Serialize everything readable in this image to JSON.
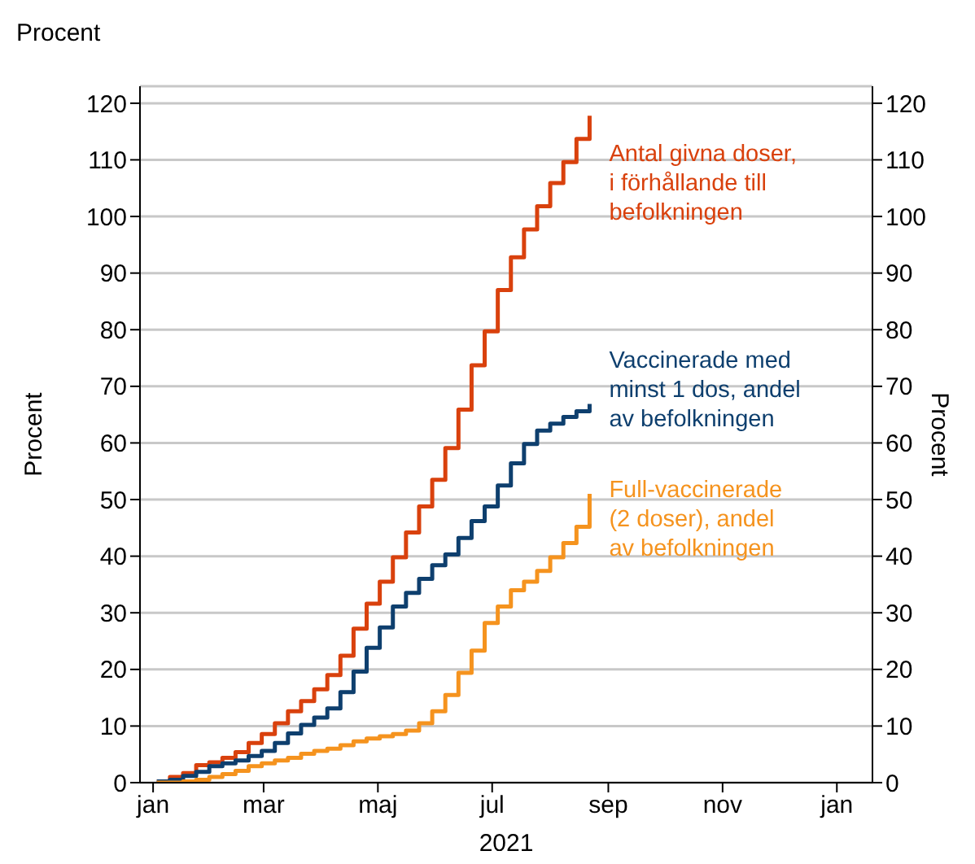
{
  "chart_data": {
    "type": "step",
    "title": "Procent",
    "xlabel": "2021",
    "ylabel": "Procent",
    "y2label": "Procent",
    "x": [
      "2021-01-03",
      "2021-01-10",
      "2021-01-17",
      "2021-01-24",
      "2021-01-31",
      "2021-02-07",
      "2021-02-14",
      "2021-02-21",
      "2021-02-28",
      "2021-03-07",
      "2021-03-14",
      "2021-03-21",
      "2021-03-28",
      "2021-04-04",
      "2021-04-11",
      "2021-04-18",
      "2021-04-25",
      "2021-05-02",
      "2021-05-09",
      "2021-05-16",
      "2021-05-23",
      "2021-05-30",
      "2021-06-06",
      "2021-06-13",
      "2021-06-20",
      "2021-06-27",
      "2021-07-04",
      "2021-07-11",
      "2021-07-18",
      "2021-07-25",
      "2021-08-01",
      "2021-08-08",
      "2021-08-15",
      "2021-08-22"
    ],
    "series": [
      {
        "name": "Antal givna doser, i förhållande till befolkningen",
        "color": "#d9410d",
        "values": [
          0.2,
          1,
          1.7,
          3.1,
          3.6,
          4.4,
          5.4,
          7,
          8.6,
          10.5,
          12.6,
          14.4,
          16.5,
          19,
          22.4,
          27.2,
          31.6,
          35.5,
          39.8,
          44.2,
          48.8,
          53.5,
          59.1,
          65.9,
          73.7,
          79.7,
          87,
          92.8,
          97.7,
          101.8,
          105.9,
          109.6,
          113.7,
          117.8
        ]
      },
      {
        "name": "Vaccinerade med minst 1 dos, andel av befolkningen",
        "color": "#0e3f6e",
        "values": [
          0.2,
          0.5,
          1.2,
          1.9,
          2.9,
          3.4,
          3.9,
          4.7,
          5.6,
          7,
          8.7,
          10.2,
          11.5,
          13.1,
          16,
          19.6,
          23.8,
          27.4,
          31.1,
          33.5,
          36,
          38.4,
          40.3,
          43.2,
          46.2,
          48.8,
          52.5,
          56.4,
          59.8,
          62.2,
          63.4,
          64.6,
          65.6,
          66.9
        ]
      },
      {
        "name": "Full-vaccinerade (2 doser), andel av befolkningen",
        "color": "#f5931e",
        "values": [
          0,
          0,
          0.2,
          0.5,
          1,
          1.5,
          2.1,
          2.9,
          3.4,
          3.9,
          4.4,
          5.1,
          5.6,
          6,
          6.6,
          7.3,
          7.8,
          8.2,
          8.6,
          9.2,
          10.5,
          12.6,
          15.5,
          19.4,
          23.3,
          28.2,
          31.1,
          34,
          35.5,
          37.4,
          39.8,
          42.3,
          45.2,
          51
        ]
      }
    ],
    "xlim": [
      "2020-12-25",
      "2022-01-20"
    ],
    "xticks": [
      {
        "value": "2021-01-01",
        "label": "jan"
      },
      {
        "value": "2021-03-01",
        "label": "mar"
      },
      {
        "value": "2021-05-01",
        "label": "maj"
      },
      {
        "value": "2021-07-01",
        "label": "jul"
      },
      {
        "value": "2021-09-01",
        "label": "sep"
      },
      {
        "value": "2021-11-01",
        "label": "nov"
      },
      {
        "value": "2022-01-01",
        "label": "jan"
      }
    ],
    "ylim": [
      0,
      123
    ],
    "yticks": [
      0,
      10,
      20,
      30,
      40,
      50,
      60,
      70,
      80,
      90,
      100,
      110,
      120
    ],
    "y2lim": [
      0,
      123
    ],
    "y2ticks": [
      0,
      10,
      20,
      30,
      40,
      50,
      60,
      70,
      80,
      90,
      100,
      110,
      120
    ],
    "grid": "y",
    "legend": false,
    "line_style": "solid",
    "marker": "none"
  }
}
